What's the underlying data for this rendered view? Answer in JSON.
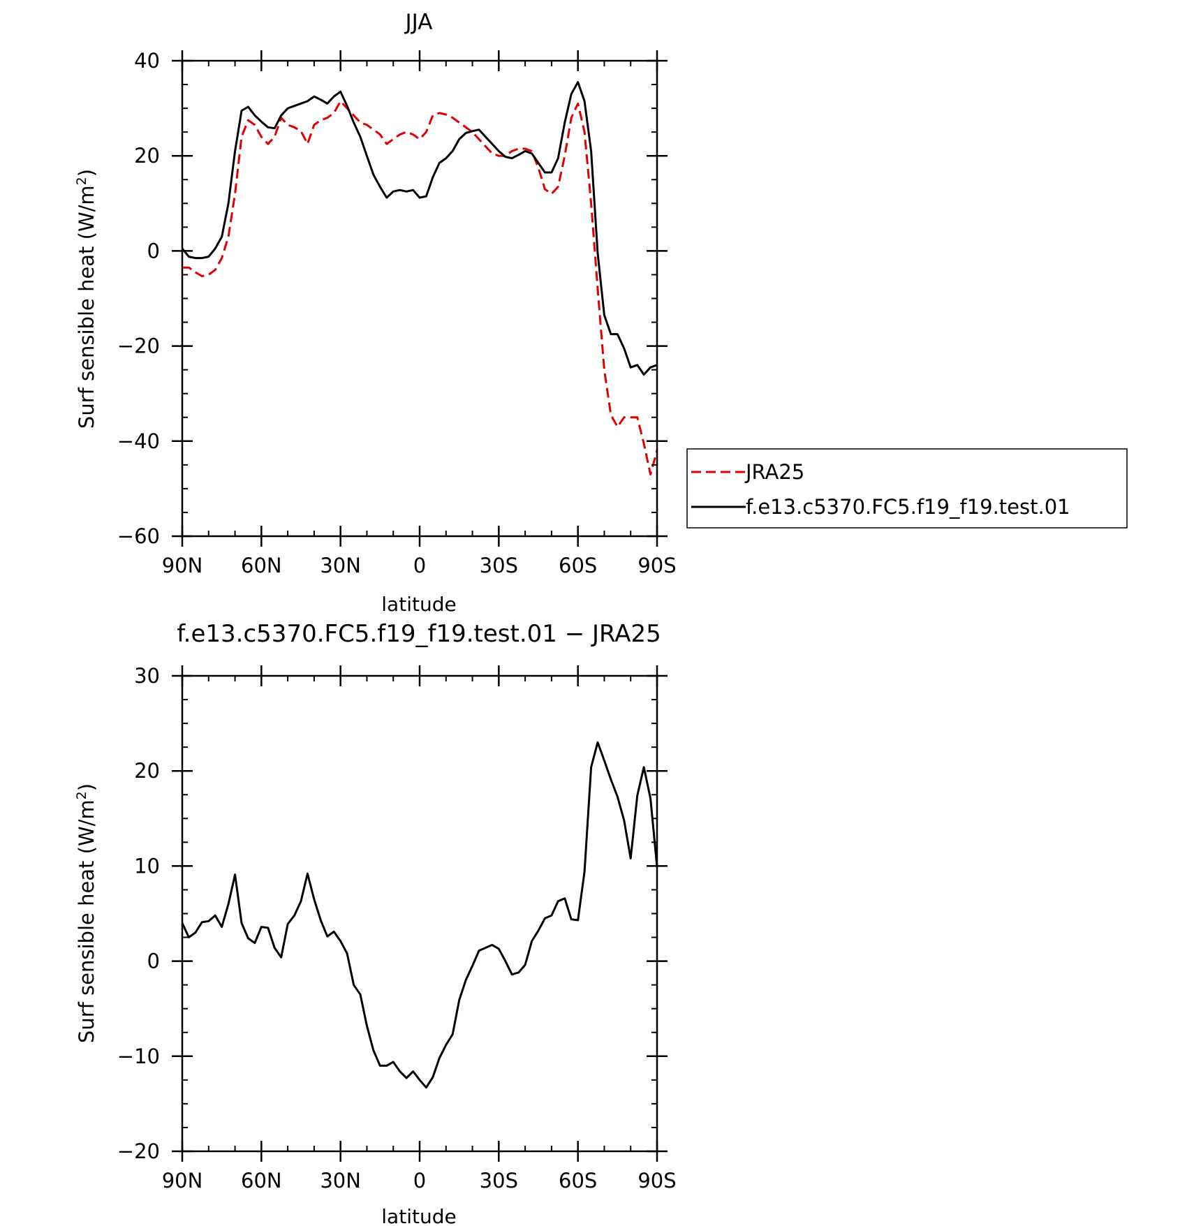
{
  "chart_data": [
    {
      "type": "line",
      "title": "JJA",
      "xlabel": "latitude",
      "ylabel": "Surf sensible heat (W/m",
      "ylabel_sup": "2",
      "ylabel_close": ")",
      "xlim": [
        90,
        -90
      ],
      "ylim": [
        -60,
        40
      ],
      "x_ticks": [
        90,
        60,
        30,
        0,
        -30,
        -60,
        -90
      ],
      "x_tick_labels": [
        "90N",
        "60N",
        "30N",
        "0",
        "30S",
        "60S",
        "90S"
      ],
      "y_ticks": [
        40,
        20,
        0,
        -20,
        -40,
        -60
      ],
      "y_tick_labels": [
        "40",
        "20",
        "0",
        "−20",
        "−40",
        "−60"
      ],
      "x": [
        90,
        87.5,
        85,
        82.5,
        80,
        77.5,
        75,
        72.5,
        70,
        67.5,
        65,
        62.5,
        60,
        57.5,
        55,
        52.5,
        50,
        47.5,
        45,
        42.5,
        40,
        37.5,
        35,
        32.5,
        30,
        27.5,
        25,
        22.5,
        20,
        17.5,
        15,
        12.5,
        10,
        7.5,
        5,
        2.5,
        0,
        -2.5,
        -5,
        -7.5,
        -10,
        -12.5,
        -15,
        -17.5,
        -20,
        -22.5,
        -25,
        -27.5,
        -30,
        -32.5,
        -35,
        -37.5,
        -40,
        -42.5,
        -45,
        -47.5,
        -50,
        -52.5,
        -55,
        -57.5,
        -60,
        -62.5,
        -65,
        -67.5,
        -70,
        -72.5,
        -75,
        -77.5,
        -80,
        -82.5,
        -85,
        -87.5,
        -90
      ],
      "series": [
        {
          "name": "JRA25",
          "color": "#e00000",
          "dash": "dashed",
          "values": [
            -3.5,
            -3.5,
            -4.5,
            -5.3,
            -5.0,
            -4.0,
            -1.5,
            3,
            12,
            24,
            27.5,
            26.5,
            24,
            22.5,
            24,
            28,
            26.5,
            26,
            25.2,
            22.5,
            26.5,
            27.5,
            28,
            29,
            31.5,
            30,
            28.5,
            27,
            26.5,
            25.5,
            24.5,
            22.5,
            23.5,
            24.5,
            25,
            24.5,
            23.5,
            25,
            28.5,
            29,
            28.7,
            28,
            27,
            26,
            25,
            23.5,
            22,
            20.5,
            20,
            20,
            21,
            21.5,
            21.5,
            21,
            17.5,
            13,
            12,
            13.5,
            20,
            28,
            31,
            25,
            10,
            -8,
            -25,
            -34.5,
            -37,
            -35,
            -35,
            -35,
            -40.5,
            -47,
            -42
          ]
        },
        {
          "name": "f.e13.c5370.FC5.f19_f19.test.01",
          "color": "#000000",
          "dash": "solid",
          "values": [
            0.5,
            -1.2,
            -1.5,
            -1.5,
            -1.2,
            0.5,
            3,
            10,
            21,
            29.5,
            30.3,
            28.5,
            27.2,
            26,
            25.8,
            28.5,
            30,
            30.5,
            31,
            31.5,
            32.5,
            31.8,
            31,
            32.5,
            33.5,
            30.5,
            27,
            24,
            20,
            16,
            13.5,
            11.2,
            12.5,
            12.8,
            12.5,
            12.8,
            11.2,
            11.5,
            15.5,
            18.5,
            19.5,
            21,
            23.5,
            24.8,
            25.2,
            25.5,
            24,
            22.5,
            21,
            19.8,
            19.5,
            20.2,
            21,
            20.5,
            18.5,
            16.5,
            16.5,
            19.5,
            27,
            33,
            35.5,
            31.5,
            21,
            -0.5,
            -13.5,
            -17.5,
            -17.5,
            -20.5,
            -24.5,
            -24,
            -26,
            -24.5,
            -24
          ]
        }
      ],
      "legend": {
        "placement": "right",
        "entries": [
          "JRA25",
          "f.e13.c5370.FC5.f19_f19.test.01"
        ]
      },
      "grid": false
    },
    {
      "type": "line",
      "title": "f.e13.c5370.FC5.f19_f19.test.01 − JRA25",
      "xlabel": "latitude",
      "ylabel": "Surf sensible heat (W/m",
      "ylabel_sup": "2",
      "ylabel_close": ")",
      "xlim": [
        90,
        -90
      ],
      "ylim": [
        -20,
        30
      ],
      "x_ticks": [
        90,
        60,
        30,
        0,
        -30,
        -60,
        -90
      ],
      "x_tick_labels": [
        "90N",
        "60N",
        "30N",
        "0",
        "30S",
        "60S",
        "90S"
      ],
      "y_ticks": [
        30,
        20,
        10,
        0,
        -10,
        -20
      ],
      "y_tick_labels": [
        "30",
        "20",
        "10",
        "0",
        "−10",
        "−20"
      ],
      "x": [
        90,
        87.5,
        85,
        82.5,
        80,
        77.5,
        75,
        72.5,
        70,
        67.5,
        65,
        62.5,
        60,
        57.5,
        55,
        52.5,
        50,
        47.5,
        45,
        42.5,
        40,
        37.5,
        35,
        32.5,
        30,
        27.5,
        25,
        22.5,
        20,
        17.5,
        15,
        12.5,
        10,
        7.5,
        5,
        2.5,
        0,
        -2.5,
        -5,
        -7.5,
        -10,
        -12.5,
        -15,
        -17.5,
        -20,
        -22.5,
        -25,
        -27.5,
        -30,
        -32.5,
        -35,
        -37.5,
        -40,
        -42.5,
        -45,
        -47.5,
        -50,
        -52.5,
        -55,
        -57.5,
        -60,
        -62.5,
        -65,
        -67.5,
        -70,
        -72.5,
        -75,
        -77.5,
        -80,
        -82.5,
        -85,
        -87.5,
        -90
      ],
      "series": [
        {
          "color": "#000000",
          "dash": "solid",
          "values": [
            4,
            2.5,
            3,
            4.1,
            4.2,
            4.8,
            3.6,
            6,
            9.1,
            4,
            2.4,
            1.9,
            3.6,
            3.5,
            1.4,
            0.4,
            3.9,
            4.8,
            6.3,
            9.2,
            6.5,
            4.3,
            2.6,
            3.1,
            2.1,
            0.8,
            -2.5,
            -3.5,
            -6.8,
            -9.4,
            -11,
            -11,
            -10.6,
            -11.6,
            -12.3,
            -11.6,
            -12.5,
            -13.3,
            -12.2,
            -10.2,
            -8.8,
            -7.7,
            -4.1,
            -2,
            -0.5,
            1.1,
            1.4,
            1.7,
            1.3,
            0,
            -1.4,
            -1.2,
            -0.4,
            2.1,
            3.2,
            4.5,
            4.8,
            6.3,
            6.6,
            4.4,
            4.3,
            9.4,
            20.4,
            23,
            21.1,
            19.1,
            17.3,
            14.8,
            10.8,
            17.4,
            20.4,
            17.1,
            9.9
          ]
        }
      ],
      "grid": false
    }
  ]
}
